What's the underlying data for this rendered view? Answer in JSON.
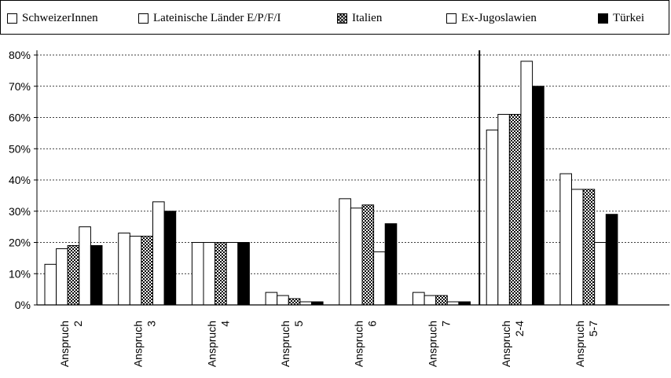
{
  "chart_data": {
    "type": "bar",
    "categories": [
      [
        "Anspruch",
        "2"
      ],
      [
        "Anspruch",
        "3"
      ],
      [
        "Anspruch",
        "4"
      ],
      [
        "Anspruch",
        "5"
      ],
      [
        "Anspruch",
        "6"
      ],
      [
        "Anspruch",
        "7"
      ],
      [
        "Anspruch",
        "2-4"
      ],
      [
        "Anspruch",
        "5-7"
      ]
    ],
    "series": [
      {
        "name": "SchweizerInnen",
        "pattern": "white",
        "values": [
          13,
          23,
          20,
          4,
          34,
          4,
          56,
          42
        ]
      },
      {
        "name": "Lateinische Länder E/P/F/I",
        "pattern": "white",
        "values": [
          18,
          22,
          20,
          3,
          31,
          3,
          61,
          37
        ]
      },
      {
        "name": "Italien",
        "pattern": "checker",
        "values": [
          19,
          22,
          20,
          2,
          32,
          3,
          61,
          37
        ]
      },
      {
        "name": "Ex-Jugoslawien",
        "pattern": "white",
        "values": [
          25,
          33,
          20,
          1,
          17,
          1,
          78,
          20
        ]
      },
      {
        "name": "Türkei",
        "pattern": "black",
        "values": [
          19,
          30,
          20,
          1,
          26,
          1,
          70,
          29
        ]
      }
    ],
    "y_ticks": [
      "0%",
      "10%",
      "20%",
      "30%",
      "40%",
      "50%",
      "60%",
      "70%",
      "80%"
    ],
    "ylim": [
      0,
      80
    ],
    "grid": true,
    "separator_after_category": 6,
    "colors": {
      "black": "#000000",
      "white": "#ffffff"
    }
  }
}
